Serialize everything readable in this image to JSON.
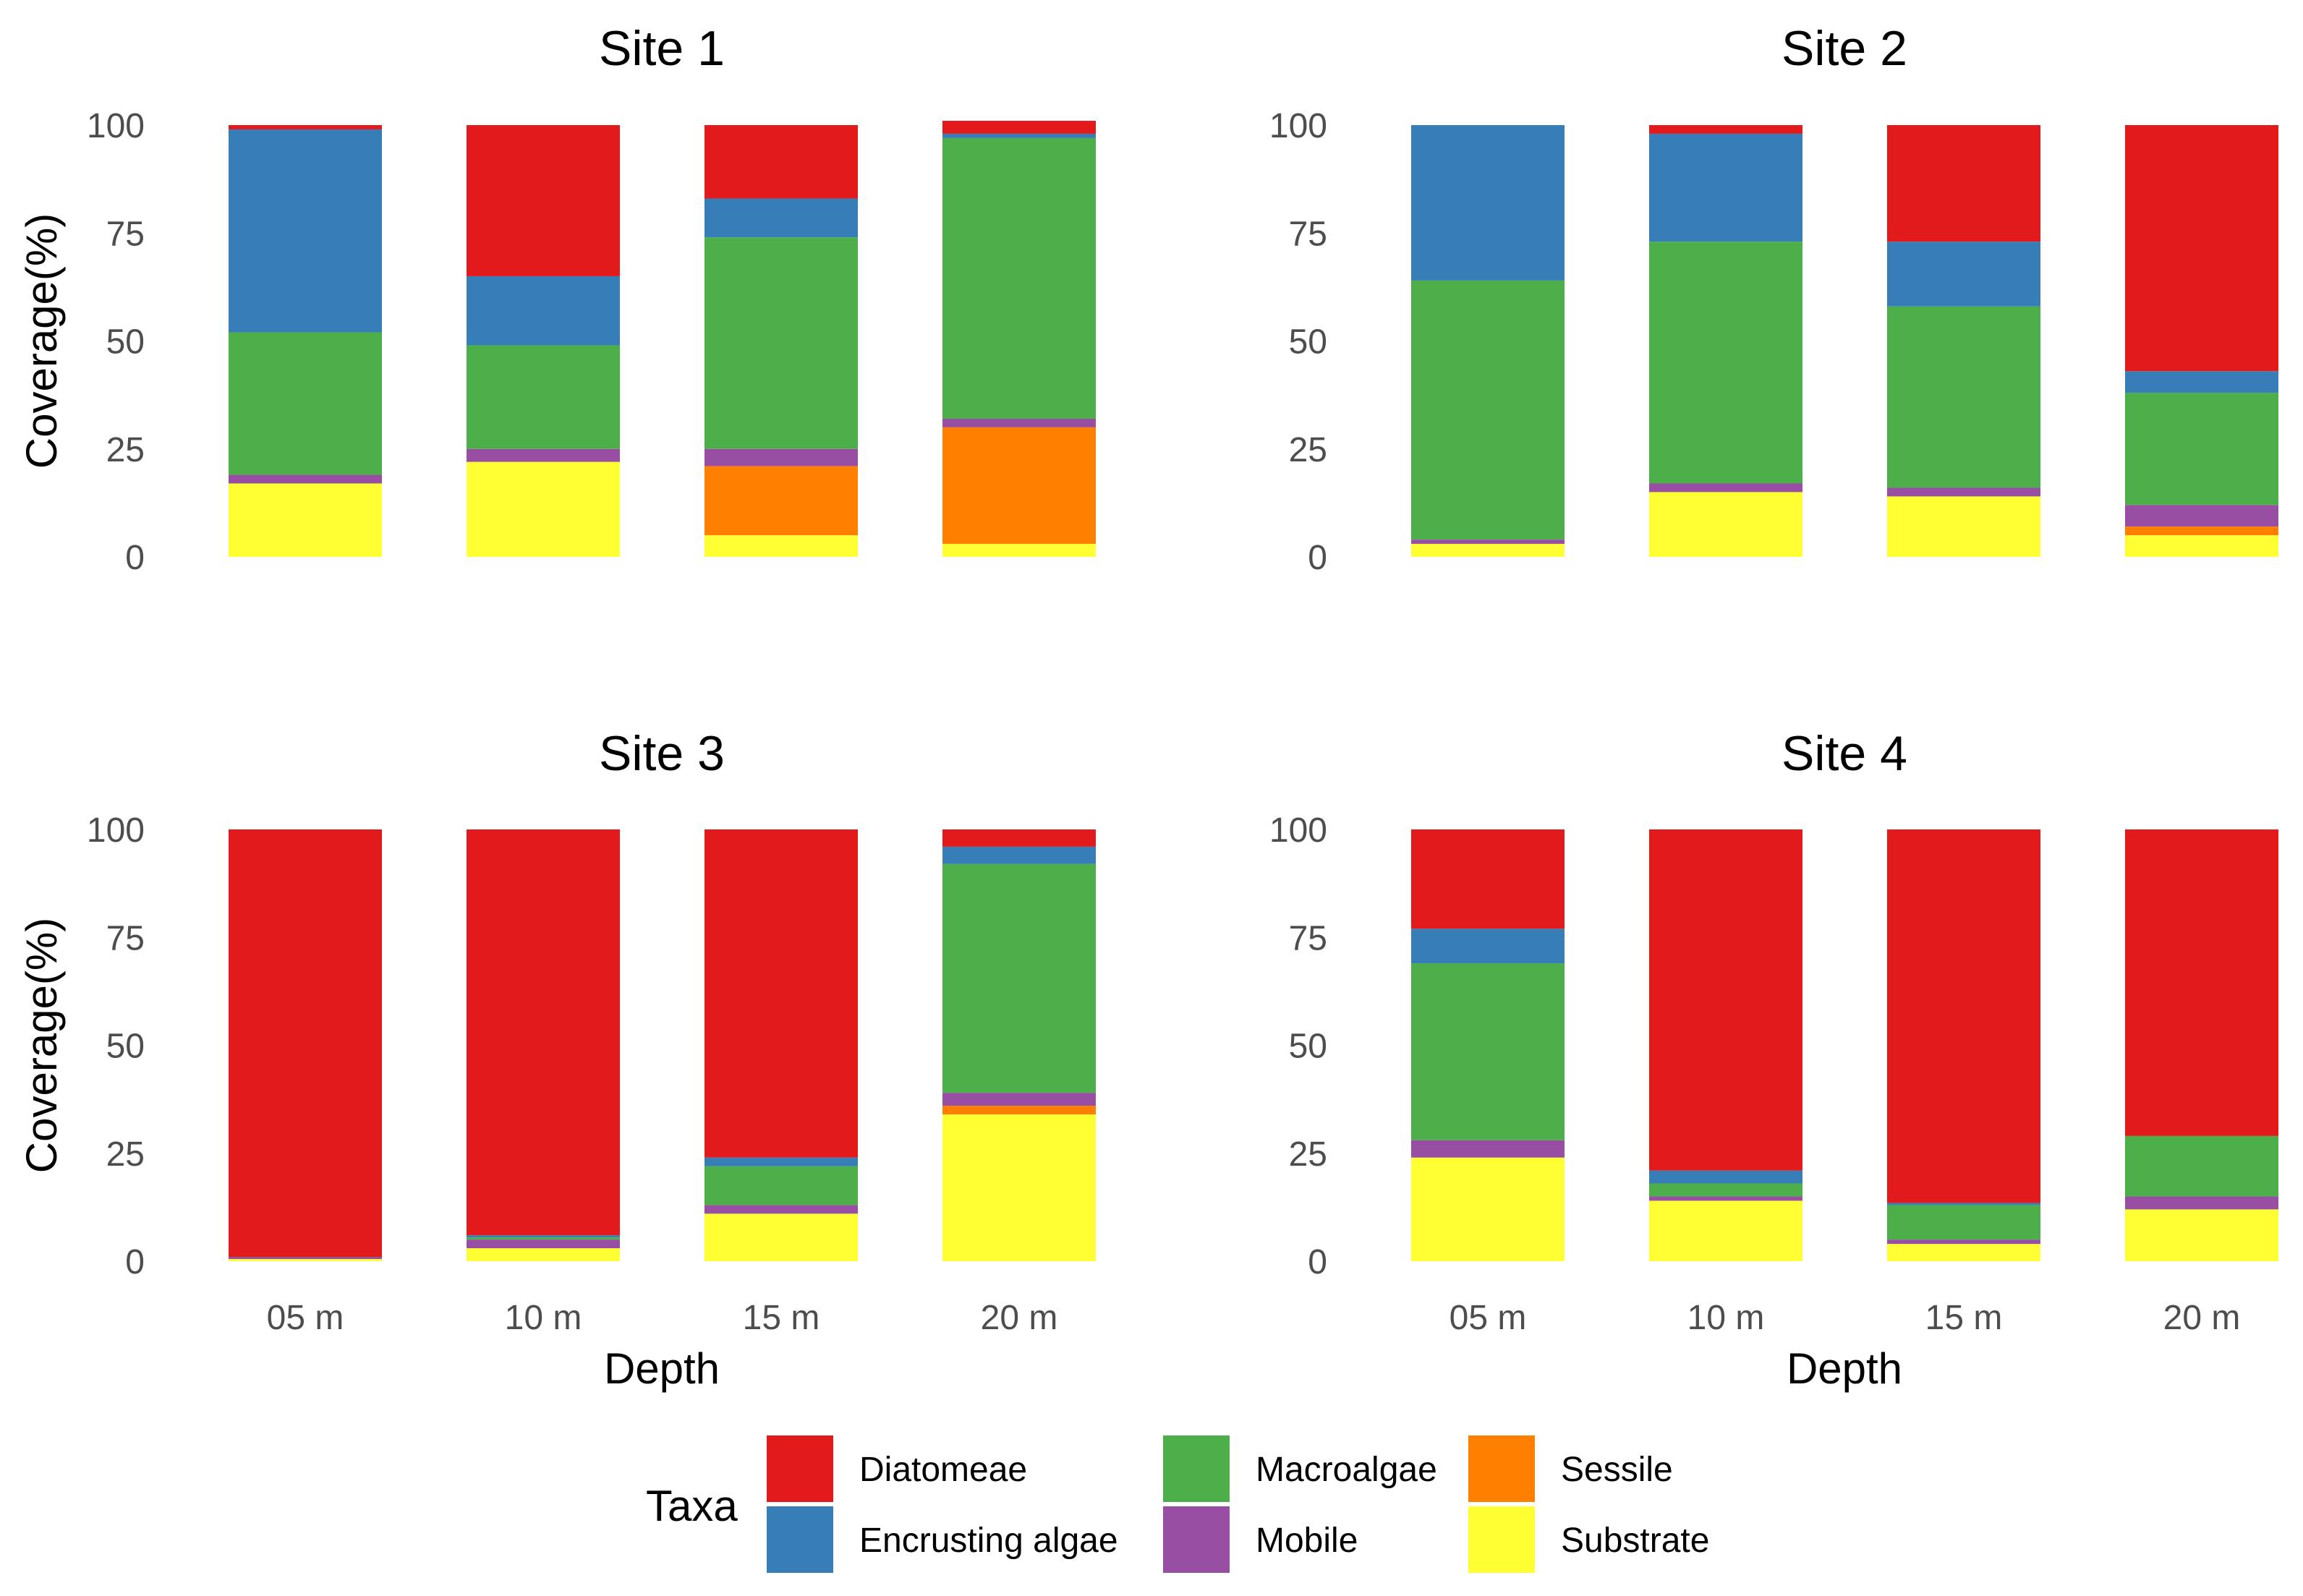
{
  "chart_data": {
    "type": "bar",
    "stacked": true,
    "categories": [
      "05 m",
      "10 m",
      "15 m",
      "20 m"
    ],
    "xlabel": "Depth",
    "ylabel": "Coverage(%)",
    "ylim": [
      0,
      100
    ],
    "yticks": [
      0,
      25,
      50,
      75,
      100
    ],
    "grid": false,
    "legend": {
      "title": "Taxa",
      "position": "bottom",
      "items": [
        {
          "name": "Diatomeae",
          "color": "#e31a1c"
        },
        {
          "name": "Encrusting algae",
          "color": "#377eb8"
        },
        {
          "name": "Macroalgae",
          "color": "#4daf4a"
        },
        {
          "name": "Mobile",
          "color": "#984ea3"
        },
        {
          "name": "Sessile",
          "color": "#ff7f00"
        },
        {
          "name": "Substrate",
          "color": "#ffff33"
        }
      ]
    },
    "stack_order": [
      "Substrate",
      "Sessile",
      "Mobile",
      "Macroalgae",
      "Encrusting algae",
      "Diatomeae"
    ],
    "panels": [
      {
        "title": "Site 1",
        "series": [
          {
            "name": "Substrate",
            "values": [
              17,
              22,
              5,
              3
            ]
          },
          {
            "name": "Sessile",
            "values": [
              0,
              0,
              16,
              27
            ]
          },
          {
            "name": "Mobile",
            "values": [
              2,
              3,
              4,
              2
            ]
          },
          {
            "name": "Macroalgae",
            "values": [
              33,
              24,
              49,
              65
            ]
          },
          {
            "name": "Encrusting algae",
            "values": [
              47,
              16,
              9,
              1
            ]
          },
          {
            "name": "Diatomeae",
            "values": [
              1,
              35,
              17,
              3
            ]
          }
        ]
      },
      {
        "title": "Site 2",
        "series": [
          {
            "name": "Substrate",
            "values": [
              3,
              15,
              14,
              5
            ]
          },
          {
            "name": "Sessile",
            "values": [
              0,
              0,
              0,
              2
            ]
          },
          {
            "name": "Mobile",
            "values": [
              1,
              2,
              2,
              5
            ]
          },
          {
            "name": "Macroalgae",
            "values": [
              60,
              56,
              42,
              26
            ]
          },
          {
            "name": "Encrusting algae",
            "values": [
              36,
              25,
              15,
              5
            ]
          },
          {
            "name": "Diatomeae",
            "values": [
              0,
              2,
              27,
              57
            ]
          }
        ]
      },
      {
        "title": "Site 3",
        "series": [
          {
            "name": "Substrate",
            "values": [
              0.5,
              3,
              11,
              34
            ]
          },
          {
            "name": "Sessile",
            "values": [
              0,
              0,
              0,
              2
            ]
          },
          {
            "name": "Mobile",
            "values": [
              0.5,
              2,
              2,
              3
            ]
          },
          {
            "name": "Macroalgae",
            "values": [
              0,
              0.5,
              9,
              53
            ]
          },
          {
            "name": "Encrusting algae",
            "values": [
              0,
              0.5,
              2,
              4
            ]
          },
          {
            "name": "Diatomeae",
            "values": [
              99,
              94,
              76,
              4
            ]
          }
        ]
      },
      {
        "title": "Site 4",
        "series": [
          {
            "name": "Substrate",
            "values": [
              24,
              14,
              4,
              12
            ]
          },
          {
            "name": "Sessile",
            "values": [
              0,
              0,
              0,
              0
            ]
          },
          {
            "name": "Mobile",
            "values": [
              4,
              1,
              1,
              3
            ]
          },
          {
            "name": "Macroalgae",
            "values": [
              41,
              3,
              8,
              14
            ]
          },
          {
            "name": "Encrusting algae",
            "values": [
              8,
              3,
              0.5,
              0
            ]
          },
          {
            "name": "Diatomeae",
            "values": [
              23,
              79,
              86.5,
              71
            ]
          }
        ]
      }
    ]
  }
}
